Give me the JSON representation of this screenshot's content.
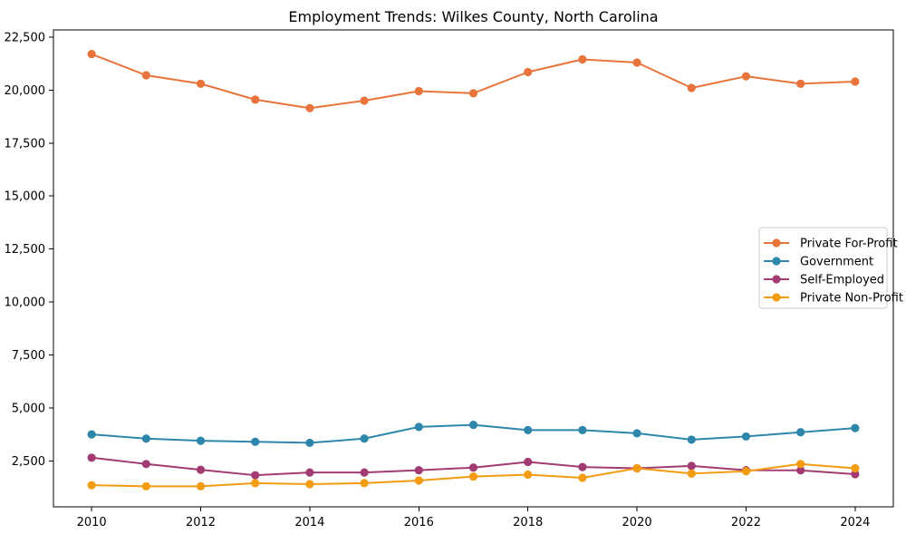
{
  "figure": {
    "background": "#ffffff",
    "axis_color": "#000000",
    "tick_label_color": "#000000",
    "legend_border_color": "#cccccc",
    "legend_background": "#ffffff"
  },
  "chart_data": {
    "type": "line",
    "title": "Employment Trends: Wilkes County, North Carolina",
    "xlabel": "",
    "ylabel": "",
    "grid": false,
    "legend_position": "center-right",
    "x": [
      2010,
      2011,
      2012,
      2013,
      2014,
      2015,
      2016,
      2017,
      2018,
      2019,
      2020,
      2021,
      2022,
      2023,
      2024
    ],
    "xlim": [
      2009.3,
      2024.7
    ],
    "ylim": [
      330,
      22840
    ],
    "xticks": [
      2010,
      2012,
      2014,
      2016,
      2018,
      2020,
      2022,
      2024
    ],
    "xtick_labels": [
      "2010",
      "2012",
      "2014",
      "2016",
      "2018",
      "2020",
      "2022",
      "2024"
    ],
    "yticks": [
      2500,
      5000,
      7500,
      10000,
      12500,
      15000,
      17500,
      20000,
      22500
    ],
    "ytick_labels": [
      "2,500",
      "5,000",
      "7,500",
      "10,000",
      "12,500",
      "15,000",
      "17,500",
      "20,000",
      "22,500"
    ],
    "series": [
      {
        "name": "Private For-Profit",
        "color": "#E8743B",
        "values": [
          21700,
          20700,
          20300,
          19550,
          19150,
          19500,
          19950,
          19850,
          20850,
          21450,
          21300,
          20100,
          20650,
          20300,
          20400
        ]
      },
      {
        "name": "Government",
        "color": "#2E86AB",
        "values": [
          3750,
          3550,
          3450,
          3400,
          3350,
          3550,
          4100,
          4200,
          3950,
          3950,
          3800,
          3500,
          3650,
          3850,
          4050
        ]
      },
      {
        "name": "Self-Employed",
        "color": "#A23B72",
        "values": [
          2650,
          2350,
          2080,
          1820,
          1950,
          1950,
          2060,
          2180,
          2450,
          2210,
          2150,
          2260,
          2060,
          2050,
          1870
        ]
      },
      {
        "name": "Private Non-Profit",
        "color": "#F39C12",
        "values": [
          1350,
          1300,
          1300,
          1450,
          1400,
          1450,
          1570,
          1760,
          1850,
          1700,
          2150,
          1900,
          2010,
          2350,
          2150
        ]
      }
    ]
  }
}
